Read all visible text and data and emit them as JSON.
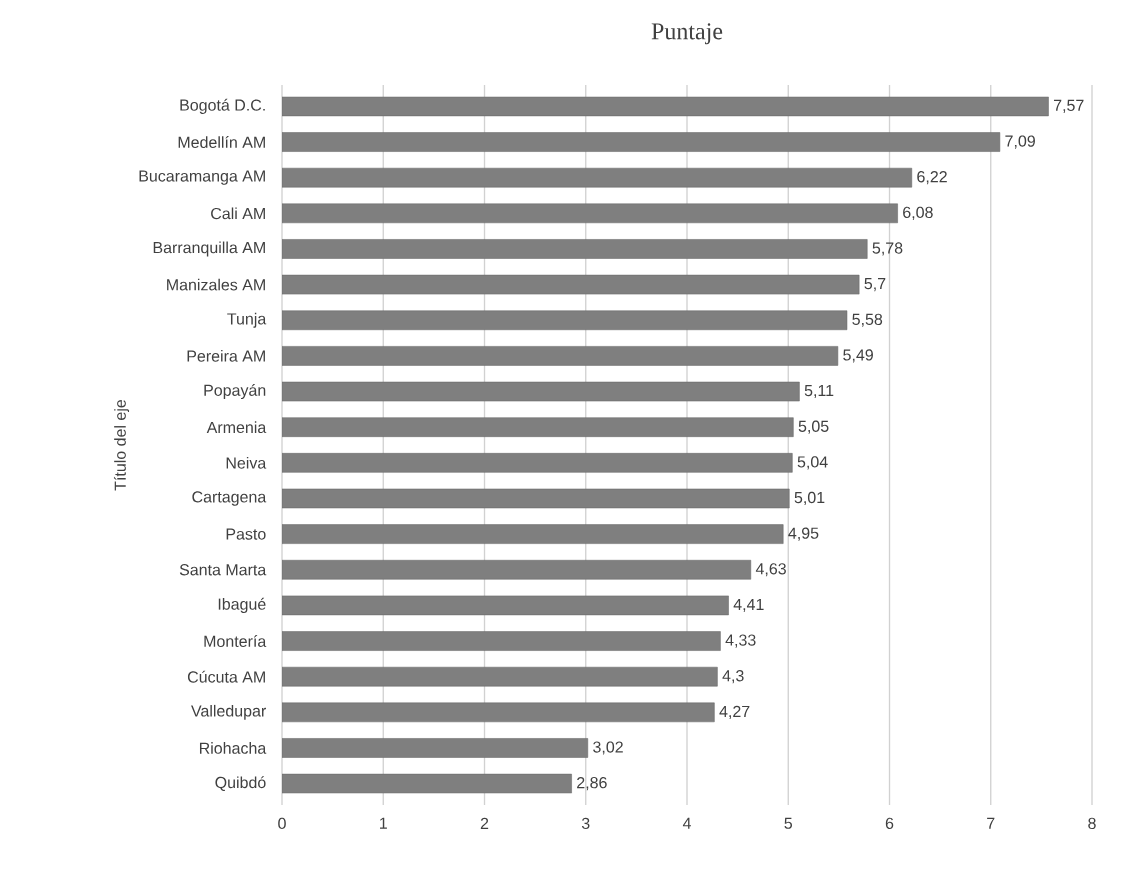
{
  "chart_data": {
    "type": "bar",
    "orientation": "horizontal",
    "title": "Puntaje",
    "ylabel": "Título del eje",
    "categories": [
      "Bogotá D.C.",
      "Medellín AM",
      "Bucaramanga AM",
      "Cali AM",
      "Barranquilla AM",
      "Manizales AM",
      "Tunja",
      "Pereira AM",
      "Popayán",
      "Armenia",
      "Neiva",
      "Cartagena",
      "Pasto",
      "Santa Marta",
      "Ibagué",
      "Montería",
      "Cúcuta AM",
      "Valledupar",
      "Riohacha",
      "Quibdó"
    ],
    "values": [
      7.57,
      7.09,
      6.22,
      6.08,
      5.78,
      5.7,
      5.58,
      5.49,
      5.11,
      5.05,
      5.04,
      5.01,
      4.95,
      4.63,
      4.41,
      4.33,
      4.3,
      4.27,
      3.02,
      2.86
    ],
    "value_labels": [
      "7,57",
      "7,09",
      "6,22",
      "6,08",
      "5,78",
      "5,7",
      "5,58",
      "5,49",
      "5,11",
      "5,05",
      "5,04",
      "5,01",
      "4,95",
      "4,63",
      "4,41",
      "4,33",
      "4,3",
      "4,27",
      "3,02",
      "2,86"
    ],
    "color": "#7f7f7f",
    "xlim": [
      0,
      8
    ],
    "xticks": [
      0,
      1,
      2,
      3,
      4,
      5,
      6,
      7,
      8
    ],
    "grid": "x"
  }
}
